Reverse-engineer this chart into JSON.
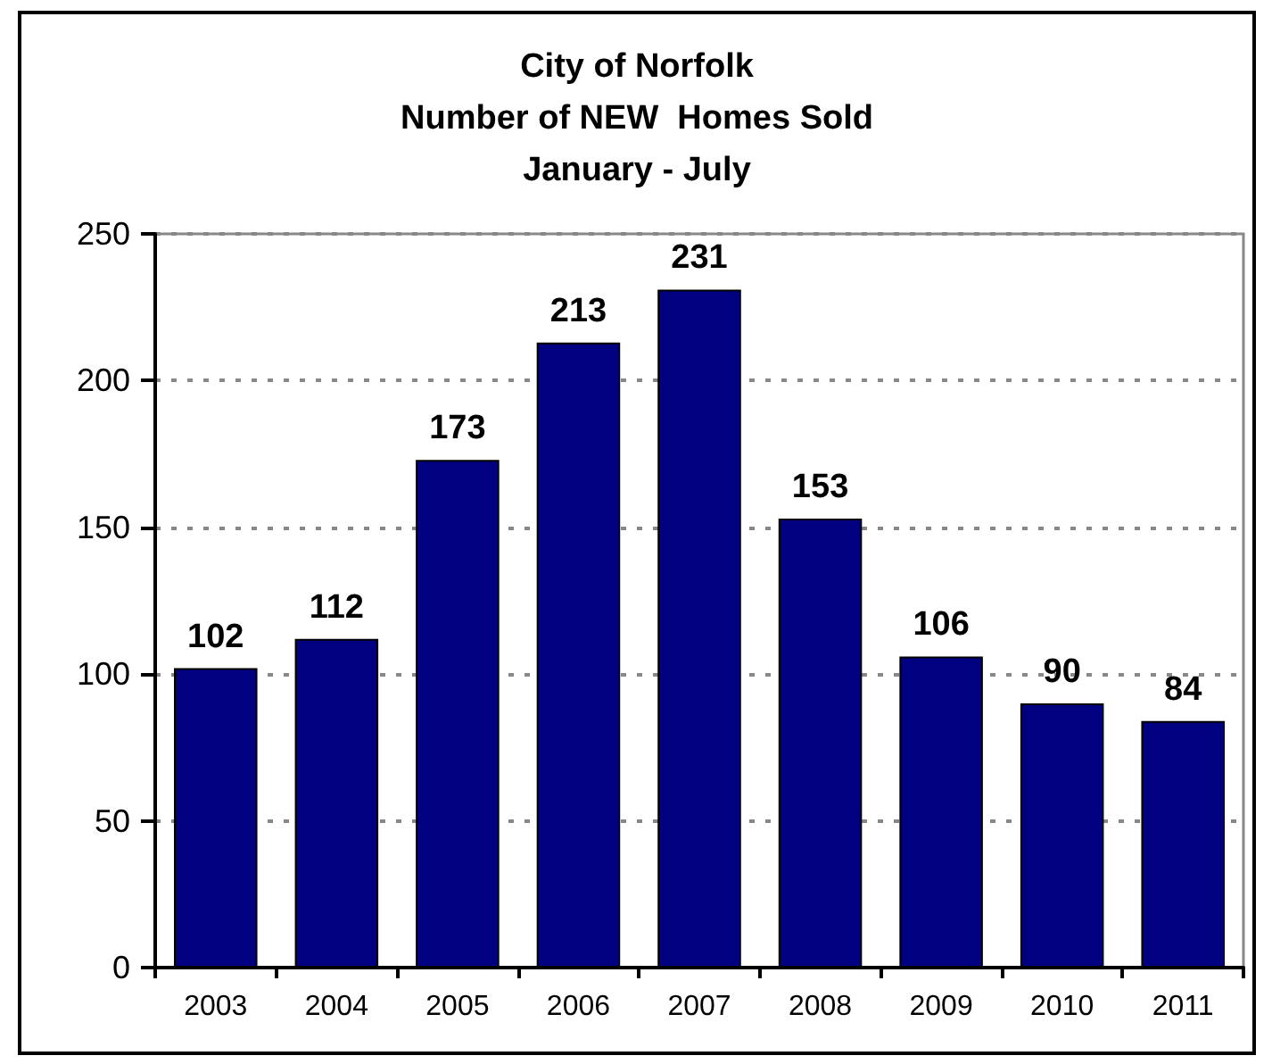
{
  "chart_data": {
    "type": "bar",
    "title": "City of Norfolk\nNumber of NEW  Homes Sold\nJanuary - July",
    "categories": [
      "2003",
      "2004",
      "2005",
      "2006",
      "2007",
      "2008",
      "2009",
      "2010",
      "2011"
    ],
    "values": [
      102,
      112,
      173,
      213,
      231,
      153,
      106,
      90,
      84
    ],
    "color": "#000080",
    "ylim": [
      0,
      250
    ],
    "yticks": [
      0,
      50,
      100,
      150,
      200,
      250
    ],
    "grid": "y",
    "data_labels": true
  }
}
